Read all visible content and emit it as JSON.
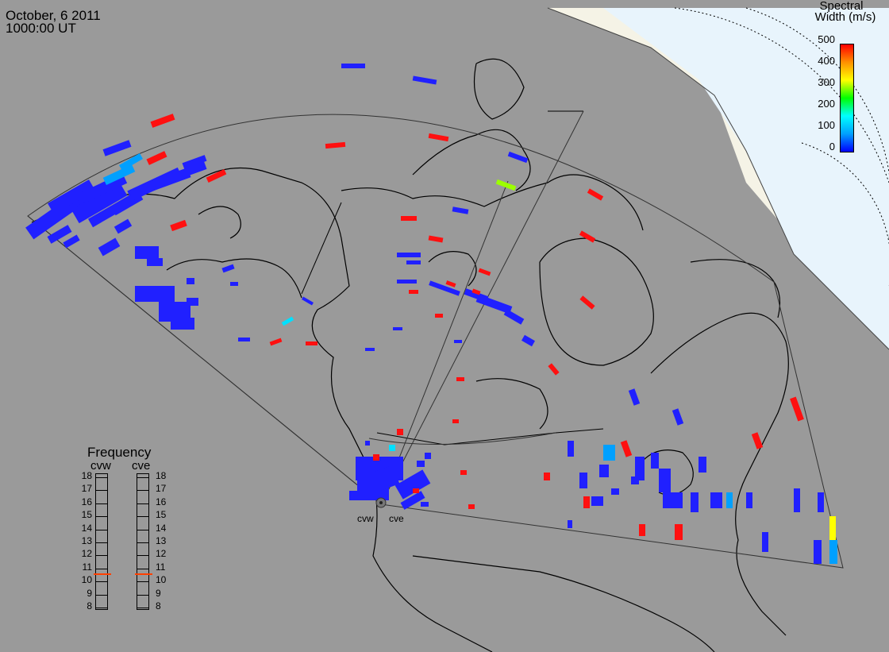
{
  "header": {
    "date": "October, 6 2011",
    "time": "1000:00 UT"
  },
  "colorbar": {
    "title_line1": "Spectral",
    "title_line2": "Width (m/s)",
    "ticks": [
      "500",
      "400",
      "300",
      "200",
      "100",
      "0"
    ],
    "range": [
      0,
      500
    ],
    "gradient": [
      "#0000ff",
      "#00a0ff",
      "#00ffff",
      "#00ff00",
      "#ffff00",
      "#ff9000",
      "#ff0000"
    ]
  },
  "frequency_panel": {
    "title": "Frequency",
    "radars": [
      "cvw",
      "cve"
    ],
    "ticks": [
      "18",
      "17",
      "16",
      "15",
      "14",
      "13",
      "12",
      "11",
      "10",
      "9",
      "8"
    ],
    "selected_mhz": {
      "cvw": 10.6,
      "cve": 10.6
    },
    "marker_color": "#ff4000"
  },
  "stations": [
    "cvw",
    "cve"
  ],
  "map_style": {
    "background": "#9a9a9a",
    "sunlit_region": "#f5f3e6",
    "polar_ocean": "#e8f4fc",
    "coastline": "#000000"
  }
}
